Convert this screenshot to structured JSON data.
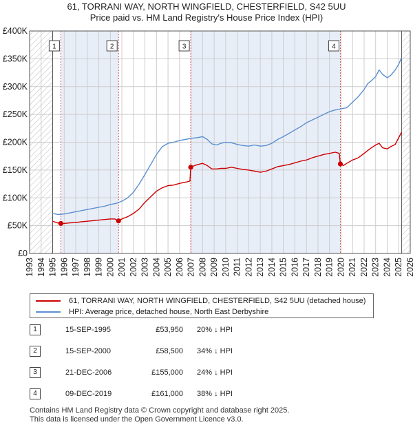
{
  "title_line1": "61, TORRANI WAY, NORTH WINGFIELD, CHESTERFIELD, S42 5UU",
  "title_line2": "Price paid vs. HM Land Registry's House Price Index (HPI)",
  "colors": {
    "hpi": "#5b8fd0",
    "price": "#cc0000",
    "shade": "#e8eef8",
    "hatch": "#bbbbbb",
    "grid": "#cccccc",
    "marker_line": "#e05050"
  },
  "chart_data": {
    "type": "line",
    "title": "61, TORRANI WAY, NORTH WINGFIELD, CHESTERFIELD, S42 5UU — Price paid vs. HM Land Registry's House Price Index (HPI)",
    "xlabel": "",
    "ylabel": "",
    "xlim": [
      1993,
      2026
    ],
    "ylim": [
      0,
      400000
    ],
    "x_ticks": [
      "1993",
      "1994",
      "1995",
      "1996",
      "1997",
      "1998",
      "1999",
      "2000",
      "2001",
      "2002",
      "2003",
      "2004",
      "2005",
      "2006",
      "2007",
      "2008",
      "2009",
      "2010",
      "2011",
      "2012",
      "2013",
      "2014",
      "2015",
      "2016",
      "2017",
      "2018",
      "2019",
      "2020",
      "2021",
      "2022",
      "2023",
      "2024",
      "2025",
      "2026"
    ],
    "y_ticks": [
      {
        "value": 0,
        "label": "£0"
      },
      {
        "value": 50000,
        "label": "£50K"
      },
      {
        "value": 100000,
        "label": "£100K"
      },
      {
        "value": 150000,
        "label": "£150K"
      },
      {
        "value": 200000,
        "label": "£200K"
      },
      {
        "value": 250000,
        "label": "£250K"
      },
      {
        "value": 300000,
        "label": "£300K"
      },
      {
        "value": 350000,
        "label": "£350K"
      },
      {
        "value": 400000,
        "label": "£400K"
      }
    ],
    "data_range": [
      1995.0,
      2025.25
    ],
    "shaded_spans": [
      [
        1995.71,
        2000.71
      ],
      [
        2006.97,
        2019.94
      ]
    ],
    "series": [
      {
        "name": "61, TORRANI WAY, NORTH WINGFIELD, CHESTERFIELD, S42 5UU (detached house)",
        "color": "#cc0000",
        "x": [
          1995.0,
          1995.4,
          1995.71,
          1996.0,
          1996.5,
          1997.0,
          1997.5,
          1998.0,
          1998.5,
          1999.0,
          1999.5,
          2000.0,
          2000.4,
          2000.71,
          2001.0,
          2001.5,
          2002.0,
          2002.5,
          2003.0,
          2003.5,
          2004.0,
          2004.5,
          2005.0,
          2005.5,
          2006.0,
          2006.5,
          2006.9,
          2006.97,
          2007.3,
          2007.6,
          2008.0,
          2008.4,
          2008.8,
          2009.2,
          2009.6,
          2010.0,
          2010.5,
          2011.0,
          2011.5,
          2012.0,
          2012.5,
          2013.0,
          2013.5,
          2014.0,
          2014.5,
          2015.0,
          2015.5,
          2016.0,
          2016.5,
          2017.0,
          2017.5,
          2018.0,
          2018.5,
          2019.0,
          2019.5,
          2019.85,
          2019.94,
          2020.2,
          2020.5,
          2021.0,
          2021.5,
          2022.0,
          2022.5,
          2023.0,
          2023.3,
          2023.6,
          2024.0,
          2024.3,
          2024.7,
          2025.0,
          2025.25
        ],
        "values": [
          58000,
          55000,
          53950,
          54000,
          55000,
          55500,
          57000,
          58000,
          59000,
          60000,
          61000,
          62000,
          62000,
          58500,
          62000,
          66000,
          72000,
          80000,
          92000,
          102000,
          112000,
          118000,
          122000,
          123000,
          126000,
          128000,
          130000,
          155000,
          158000,
          160000,
          162000,
          158000,
          152000,
          152000,
          153000,
          153000,
          155000,
          153000,
          151000,
          150000,
          148000,
          146000,
          148000,
          152000,
          156000,
          158000,
          160000,
          163000,
          166000,
          168000,
          172000,
          175000,
          178000,
          180000,
          182000,
          180000,
          161000,
          158000,
          162000,
          168000,
          172000,
          180000,
          188000,
          195000,
          198000,
          190000,
          188000,
          192000,
          196000,
          208000,
          218000
        ]
      },
      {
        "name": "HPI: Average price, detached house, North East Derbyshire",
        "color": "#5b8fd0",
        "x": [
          1995.0,
          1995.5,
          1996.0,
          1996.5,
          1997.0,
          1997.5,
          1998.0,
          1998.5,
          1999.0,
          1999.5,
          2000.0,
          2000.5,
          2001.0,
          2001.5,
          2002.0,
          2002.5,
          2003.0,
          2003.5,
          2004.0,
          2004.5,
          2005.0,
          2005.5,
          2006.0,
          2006.5,
          2007.0,
          2007.5,
          2008.0,
          2008.4,
          2008.8,
          2009.2,
          2009.6,
          2010.0,
          2010.5,
          2011.0,
          2011.5,
          2012.0,
          2012.5,
          2013.0,
          2013.5,
          2014.0,
          2014.5,
          2015.0,
          2015.5,
          2016.0,
          2016.5,
          2017.0,
          2017.5,
          2018.0,
          2018.5,
          2019.0,
          2019.5,
          2020.0,
          2020.5,
          2021.0,
          2021.5,
          2022.0,
          2022.3,
          2022.6,
          2023.0,
          2023.3,
          2023.6,
          2024.0,
          2024.3,
          2024.7,
          2025.0,
          2025.25
        ],
        "values": [
          72000,
          70000,
          71000,
          73000,
          75000,
          77000,
          79000,
          81000,
          83000,
          85000,
          88000,
          90000,
          94000,
          100000,
          110000,
          125000,
          142000,
          160000,
          178000,
          192000,
          198000,
          200000,
          203000,
          205000,
          207000,
          208000,
          210000,
          205000,
          197000,
          195000,
          198000,
          200000,
          199000,
          196000,
          194000,
          193000,
          195000,
          193000,
          194000,
          198000,
          205000,
          210000,
          216000,
          222000,
          228000,
          235000,
          240000,
          245000,
          250000,
          255000,
          258000,
          260000,
          262000,
          272000,
          282000,
          295000,
          305000,
          310000,
          318000,
          330000,
          322000,
          316000,
          320000,
          330000,
          340000,
          352000
        ]
      }
    ],
    "annotations": [
      {
        "label": "1",
        "x": 1995.71,
        "value": 53950
      },
      {
        "label": "2",
        "x": 2000.71,
        "value": 58500
      },
      {
        "label": "3",
        "x": 2006.97,
        "value": 155000
      },
      {
        "label": "4",
        "x": 2019.94,
        "value": 161000
      }
    ]
  },
  "legend": {
    "items": [
      {
        "label": "61, TORRANI WAY, NORTH WINGFIELD, CHESTERFIELD, S42 5UU (detached house)",
        "color": "#cc0000"
      },
      {
        "label": "HPI: Average price, detached house, North East Derbyshire",
        "color": "#5b8fd0"
      }
    ]
  },
  "sales": [
    {
      "num": "1",
      "date": "15-SEP-1995",
      "price": "£53,950",
      "pct": "20% ↓ HPI"
    },
    {
      "num": "2",
      "date": "15-SEP-2000",
      "price": "£58,500",
      "pct": "34% ↓ HPI"
    },
    {
      "num": "3",
      "date": "21-DEC-2006",
      "price": "£155,000",
      "pct": "24% ↓ HPI"
    },
    {
      "num": "4",
      "date": "09-DEC-2019",
      "price": "£161,000",
      "pct": "38% ↓ HPI"
    }
  ],
  "footer": {
    "line1": "Contains HM Land Registry data © Crown copyright and database right 2025.",
    "line2": "This data is licensed under the Open Government Licence v3.0."
  }
}
